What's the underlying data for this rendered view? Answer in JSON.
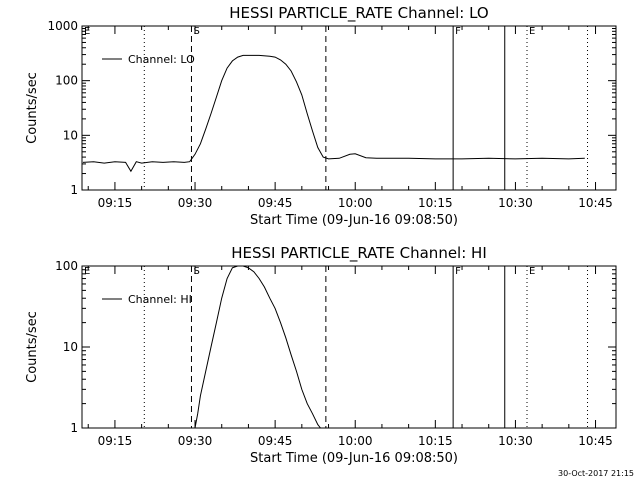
{
  "chart_data": [
    {
      "type": "line",
      "title": "HESSI PARTICLE_RATE Channel: LO",
      "xlabel": "Start Time (09-Jun-16 09:08:50)",
      "ylabel": "Counts/sec",
      "y_scale": "log",
      "ylim": [
        1,
        1000
      ],
      "xlim_minutes": [
        "09:08:50",
        "10:48:50"
      ],
      "xticks": [
        "09:15",
        "09:30",
        "09:45",
        "10:00",
        "10:15",
        "10:30",
        "10:45"
      ],
      "yticks": [
        "1",
        "10",
        "100",
        "1000"
      ],
      "legend": {
        "placement": "top-left",
        "entries": [
          "Channel: LO"
        ]
      },
      "markers": [
        {
          "label": "E",
          "time": "09:08:50",
          "style": "dotted"
        },
        {
          "label": "",
          "time": "09:20:30",
          "style": "dotted"
        },
        {
          "label": "S",
          "time": "09:29:20",
          "style": "dashed"
        },
        {
          "label": "",
          "time": "09:54:30",
          "style": "dashed"
        },
        {
          "label": "F",
          "time": "10:18:20",
          "style": "solid"
        },
        {
          "label": "",
          "time": "10:28:00",
          "style": "solid"
        },
        {
          "label": "E",
          "time": "10:32:10",
          "style": "dotted"
        },
        {
          "label": "",
          "time": "10:43:30",
          "style": "dotted"
        }
      ],
      "series": [
        {
          "name": "Channel: LO",
          "x": [
            "09:09",
            "09:11",
            "09:13",
            "09:15",
            "09:17",
            "09:18",
            "09:19",
            "09:20",
            "09:22",
            "09:24",
            "09:26",
            "09:28",
            "09:29",
            "09:30",
            "09:31",
            "09:32",
            "09:33",
            "09:34",
            "09:35",
            "09:36",
            "09:37",
            "09:38",
            "09:39",
            "09:40",
            "09:42",
            "09:44",
            "09:45",
            "09:46",
            "09:47",
            "09:48",
            "09:49",
            "09:50",
            "09:51",
            "09:52",
            "09:53",
            "09:54",
            "09:55",
            "09:57",
            "09:59",
            "10:00",
            "10:02",
            "10:04",
            "10:06",
            "10:10",
            "10:15",
            "10:20",
            "10:25",
            "10:30",
            "10:35",
            "10:40",
            "10:43"
          ],
          "y": [
            3.2,
            3.3,
            3.1,
            3.3,
            3.2,
            2.2,
            3.3,
            3.1,
            3.3,
            3.2,
            3.3,
            3.2,
            3.3,
            4.5,
            7,
            13,
            25,
            50,
            100,
            170,
            230,
            270,
            290,
            290,
            290,
            280,
            270,
            240,
            200,
            150,
            95,
            55,
            25,
            12,
            6,
            4,
            3.7,
            3.8,
            4.5,
            4.6,
            3.9,
            3.8,
            3.8,
            3.8,
            3.7,
            3.7,
            3.8,
            3.7,
            3.8,
            3.7,
            3.8
          ]
        }
      ]
    },
    {
      "type": "line",
      "title": "HESSI PARTICLE_RATE Channel: HI",
      "xlabel": "Start Time (09-Jun-16 09:08:50)",
      "ylabel": "Counts/sec",
      "y_scale": "log",
      "ylim": [
        1,
        100
      ],
      "xlim_minutes": [
        "09:08:50",
        "10:48:50"
      ],
      "xticks": [
        "09:15",
        "09:30",
        "09:45",
        "10:00",
        "10:15",
        "10:30",
        "10:45"
      ],
      "yticks": [
        "1",
        "10",
        "100"
      ],
      "legend": {
        "placement": "top-left",
        "entries": [
          "Channel: HI"
        ]
      },
      "markers": [
        {
          "label": "E",
          "time": "09:08:50",
          "style": "dotted"
        },
        {
          "label": "",
          "time": "09:20:30",
          "style": "dotted"
        },
        {
          "label": "S",
          "time": "09:29:20",
          "style": "dashed"
        },
        {
          "label": "",
          "time": "09:54:30",
          "style": "dashed"
        },
        {
          "label": "F",
          "time": "10:18:20",
          "style": "solid"
        },
        {
          "label": "",
          "time": "10:28:00",
          "style": "solid"
        },
        {
          "label": "E",
          "time": "10:32:10",
          "style": "dotted"
        },
        {
          "label": "",
          "time": "10:43:30",
          "style": "dotted"
        }
      ],
      "series": [
        {
          "name": "Channel: HI",
          "x": [
            "09:30:00",
            "09:30:30",
            "09:31:00",
            "09:32:00",
            "09:33:00",
            "09:34:00",
            "09:35:00",
            "09:36:00",
            "09:37:00",
            "09:38:00",
            "09:39:00",
            "09:40:00",
            "09:41:00",
            "09:42:00",
            "09:43:00",
            "09:44:00",
            "09:45:00",
            "09:46:00",
            "09:47:00",
            "09:48:00",
            "09:49:00",
            "09:50:00",
            "09:51:00",
            "09:52:00",
            "09:53:00",
            "09:53:30"
          ],
          "y": [
            1.0,
            1.5,
            2.5,
            5,
            10,
            20,
            40,
            70,
            95,
            100,
            100,
            95,
            85,
            70,
            55,
            40,
            30,
            20,
            13,
            8,
            5,
            3,
            2,
            1.5,
            1.1,
            1.0
          ]
        }
      ]
    }
  ],
  "footer": "30-Oct-2017 21:15"
}
